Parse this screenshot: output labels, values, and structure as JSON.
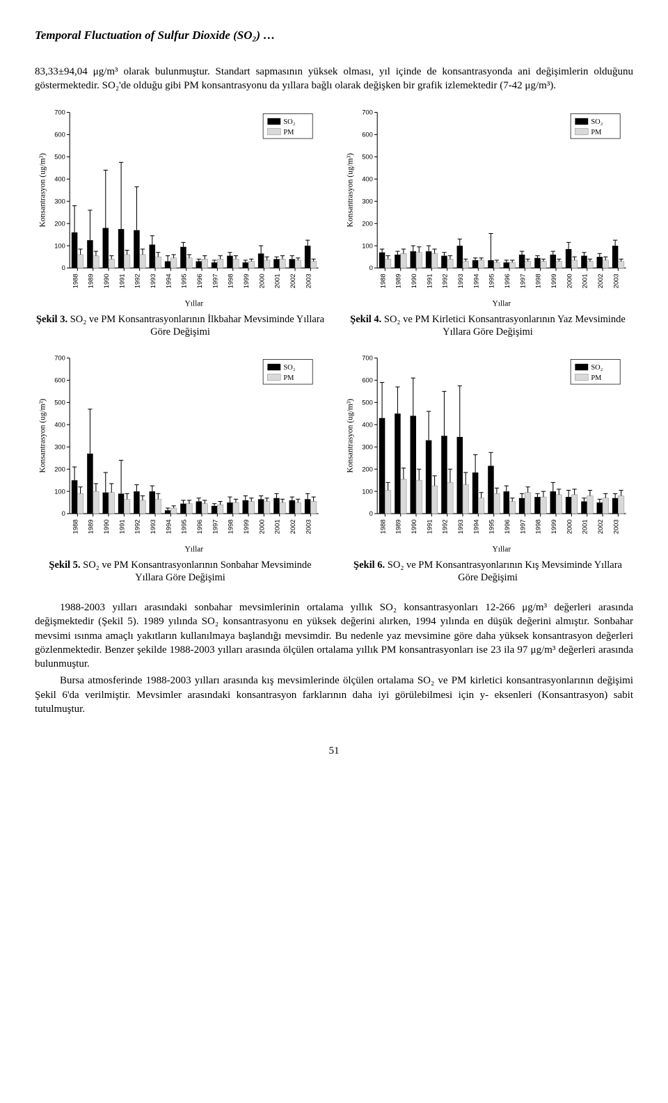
{
  "header": {
    "title": "Temporal Fluctuation of Sulfur Dioxide (SO₂) …"
  },
  "para1": "83,33±94,04 μg/m³ olarak bulunmuştur. Standart sapmasının yüksek olması, yıl içinde de konsantrasyonda ani değişimlerin olduğunu göstermektedir. SO₂'de olduğu gibi PM konsantrasyonu da yıllara bağlı olarak değişken bir grafik izlemektedir (7-42 μg/m³).",
  "para2a": "1988-2003 yılları arasındaki sonbahar mevsimlerinin ortalama yıllık SO₂ konsantrasyonları 12-266 μg/m³ değerleri arasında değişmektedir (Şekil 5). 1989 yılında SO₂ konsantrasyonu en yüksek değerini alırken, 1994 yılında en düşük değerini almıştır. Sonbahar mevsimi ısınma amaçlı yakıtların kullanılmaya başlandığı mevsimdir. Bu nedenle yaz mevsimine göre daha yüksek konsantrasyon değerleri gözlenmektedir. Benzer şekilde 1988-2003 yılları arasında ölçülen ortalama yıllık PM konsantrasyonları ise 23 ila 97 μg/m³ değerleri arasında bulunmuştur.",
  "para2b": "Bursa atmosferinde 1988-2003 yılları arasında kış mevsimlerinde ölçülen ortalama SO₂ ve PM kirletici konsantrasyonlarının değişimi Şekil 6'da verilmiştir. Mevsimler arasındaki konsantrasyon farklarının daha iyi görülebilmesi için y- eksenleri (Konsantrasyon) sabit tutulmuştur.",
  "pagenum": "51",
  "common": {
    "years": [
      "1988",
      "1989",
      "1990",
      "1991",
      "1992",
      "1993",
      "1994",
      "1995",
      "1996",
      "1997",
      "1998",
      "1999",
      "2000",
      "2001",
      "2002",
      "2003"
    ],
    "ylabel": "Konsantrasyon (ug/m³)",
    "xlabel": "Yıllar",
    "legend": {
      "so2": "SO₂",
      "pm": "PM"
    },
    "colors": {
      "so2": "#000000",
      "pm": "#d9d9d9",
      "axis": "#000000",
      "bg": "#ffffff",
      "errbar": "#000000"
    },
    "ylim": [
      0,
      700
    ],
    "ytick_step": 100,
    "bar_width": 0.38,
    "err_cap": 3,
    "axis_fontsize": 9,
    "label_fontsize": 11,
    "legend_fontsize": 10
  },
  "charts": {
    "c3": {
      "caption_bold": "Şekil 3.",
      "caption_rest": " SO₂ ve PM Konsantrasyonlarının İlkbahar Mevsiminde Yıllara Göre Değişimi",
      "so2": [
        160,
        125,
        180,
        175,
        170,
        105,
        30,
        95,
        30,
        25,
        55,
        25,
        65,
        40,
        40,
        100
      ],
      "so2_err": [
        120,
        135,
        260,
        300,
        195,
        40,
        25,
        20,
        10,
        10,
        15,
        10,
        35,
        10,
        15,
        25
      ],
      "pm": [
        60,
        55,
        40,
        60,
        60,
        50,
        45,
        45,
        40,
        40,
        40,
        30,
        35,
        40,
        35,
        30
      ],
      "pm_err": [
        25,
        20,
        15,
        20,
        25,
        20,
        15,
        15,
        15,
        15,
        15,
        10,
        15,
        15,
        10,
        10
      ]
    },
    "c4": {
      "caption_bold": "Şekil 4.",
      "caption_rest": " SO₂ ve PM Kirletici Konsantrasyonlarının Yaz Mevsiminde Yıllara Göre Değişimi",
      "so2": [
        70,
        60,
        75,
        75,
        55,
        100,
        35,
        35,
        25,
        60,
        45,
        60,
        85,
        55,
        50,
        100
      ],
      "so2_err": [
        15,
        15,
        25,
        25,
        15,
        30,
        10,
        120,
        10,
        15,
        10,
        15,
        30,
        15,
        15,
        25
      ],
      "pm": [
        40,
        65,
        70,
        65,
        40,
        30,
        35,
        25,
        25,
        30,
        30,
        30,
        35,
        30,
        35,
        30
      ],
      "pm_err": [
        15,
        20,
        25,
        20,
        15,
        10,
        10,
        10,
        10,
        10,
        10,
        10,
        15,
        10,
        15,
        10
      ]
    },
    "c5": {
      "caption_bold": "Şekil 5.",
      "caption_rest": " SO₂ ve PM Konsantrasyonlarının Sonbahar Mevsiminde Yıllara Göre Değişimi",
      "so2": [
        150,
        270,
        95,
        90,
        100,
        100,
        15,
        45,
        55,
        35,
        50,
        60,
        65,
        70,
        60,
        65
      ],
      "so2_err": [
        60,
        200,
        90,
        150,
        30,
        25,
        10,
        15,
        15,
        10,
        25,
        20,
        15,
        20,
        15,
        25
      ],
      "pm": [
        90,
        100,
        95,
        65,
        60,
        65,
        25,
        45,
        45,
        40,
        50,
        55,
        55,
        50,
        50,
        55
      ],
      "pm_err": [
        30,
        35,
        40,
        25,
        20,
        25,
        10,
        15,
        15,
        15,
        15,
        15,
        15,
        15,
        15,
        20
      ]
    },
    "c6": {
      "caption_bold": "Şekil 6.",
      "caption_rest": " SO₂ ve PM Konsantrasyonlarının Kış Mevsiminde Yıllara Göre Değişimi",
      "so2": [
        430,
        450,
        440,
        330,
        350,
        345,
        185,
        215,
        100,
        70,
        75,
        100,
        75,
        55,
        50,
        70
      ],
      "so2_err": [
        160,
        120,
        170,
        130,
        200,
        230,
        80,
        60,
        25,
        20,
        15,
        40,
        30,
        15,
        15,
        20
      ],
      "pm": [
        105,
        155,
        150,
        125,
        140,
        130,
        70,
        90,
        55,
        95,
        75,
        85,
        85,
        80,
        70,
        80
      ],
      "pm_err": [
        35,
        50,
        50,
        45,
        60,
        55,
        25,
        25,
        15,
        25,
        25,
        25,
        25,
        25,
        20,
        25
      ]
    }
  }
}
